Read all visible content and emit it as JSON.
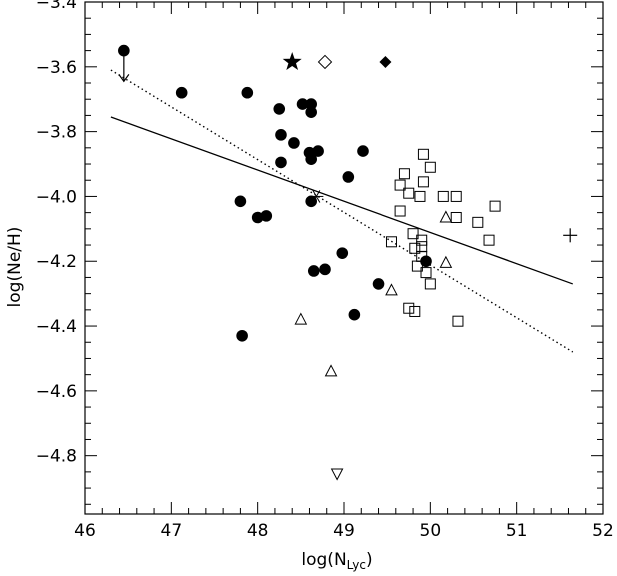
{
  "chart_data": {
    "type": "scatter",
    "title": "",
    "xlabel": "log(N",
    "xlabel_sub": "Lyc",
    "xlabel_end": ")",
    "ylabel": "log(Ne/H)",
    "xlim": [
      46,
      52
    ],
    "ylim": [
      -4.98,
      -3.4
    ],
    "x_ticks": [
      46,
      47,
      48,
      49,
      50,
      51,
      52
    ],
    "x_tick_labels": [
      "46",
      "47",
      "48",
      "49",
      "50",
      "51",
      "52"
    ],
    "y_ticks": [
      -3.4,
      -3.6,
      -3.8,
      -4.0,
      -4.2,
      -4.4,
      -4.6,
      -4.8
    ],
    "y_tick_labels": [
      "−3.4",
      "−3.6",
      "−3.8",
      "−4.0",
      "−4.2",
      "−4.4",
      "−4.6",
      "−4.8"
    ],
    "grid": false,
    "legend": "none",
    "series": [
      {
        "marker": "filled-circle",
        "points": [
          [
            46.45,
            -3.55
          ],
          [
            47.12,
            -3.68
          ],
          [
            47.88,
            -3.68
          ],
          [
            48.25,
            -3.73
          ],
          [
            48.52,
            -3.715
          ],
          [
            48.62,
            -3.715
          ],
          [
            48.62,
            -3.74
          ],
          [
            48.27,
            -3.81
          ],
          [
            48.42,
            -3.835
          ],
          [
            48.27,
            -3.895
          ],
          [
            48.6,
            -3.865
          ],
          [
            48.62,
            -3.885
          ],
          [
            48.7,
            -3.86
          ],
          [
            49.22,
            -3.86
          ],
          [
            49.05,
            -3.94
          ],
          [
            47.8,
            -4.015
          ],
          [
            48.0,
            -4.065
          ],
          [
            48.1,
            -4.06
          ],
          [
            48.62,
            -4.015
          ],
          [
            48.98,
            -4.175
          ],
          [
            48.65,
            -4.23
          ],
          [
            48.78,
            -4.225
          ],
          [
            49.95,
            -4.2
          ],
          [
            49.4,
            -4.27
          ],
          [
            49.12,
            -4.365
          ],
          [
            47.82,
            -4.43
          ]
        ]
      },
      {
        "marker": "open-square",
        "points": [
          [
            49.92,
            -3.87
          ],
          [
            49.92,
            -3.955
          ],
          [
            50.0,
            -3.91
          ],
          [
            49.7,
            -3.93
          ],
          [
            49.65,
            -3.965
          ],
          [
            49.75,
            -3.99
          ],
          [
            49.88,
            -4.0
          ],
          [
            50.15,
            -4.0
          ],
          [
            50.3,
            -4.0
          ],
          [
            50.75,
            -4.03
          ],
          [
            49.65,
            -4.045
          ],
          [
            50.3,
            -4.065
          ],
          [
            50.55,
            -4.08
          ],
          [
            49.8,
            -4.115
          ],
          [
            49.9,
            -4.135
          ],
          [
            50.68,
            -4.135
          ],
          [
            49.55,
            -4.14
          ],
          [
            49.82,
            -4.16
          ],
          [
            49.9,
            -4.155
          ],
          [
            49.9,
            -4.185
          ],
          [
            49.85,
            -4.215
          ],
          [
            49.95,
            -4.235
          ],
          [
            50.0,
            -4.27
          ],
          [
            49.75,
            -4.345
          ],
          [
            49.82,
            -4.355
          ],
          [
            50.32,
            -4.385
          ]
        ]
      },
      {
        "marker": "open-triangle-up",
        "points": [
          [
            50.18,
            -4.065
          ],
          [
            50.18,
            -4.205
          ],
          [
            49.55,
            -4.29
          ],
          [
            48.5,
            -4.38
          ],
          [
            48.85,
            -4.54
          ]
        ]
      },
      {
        "marker": "open-triangle-down",
        "points": [
          [
            48.92,
            -4.855
          ]
        ]
      },
      {
        "marker": "filled-star",
        "points": [
          [
            48.4,
            -3.585
          ]
        ]
      },
      {
        "marker": "open-diamond",
        "points": [
          [
            48.78,
            -3.585
          ]
        ]
      },
      {
        "marker": "filled-diamond",
        "points": [
          [
            49.48,
            -3.585
          ]
        ]
      },
      {
        "marker": "plus",
        "points": [
          [
            51.62,
            -4.12
          ]
        ]
      },
      {
        "marker": "asterisk",
        "points": [
          [
            48.68,
            -4.0
          ]
        ]
      }
    ],
    "upper_limit_arrow": {
      "x": 46.45,
      "y_from": -3.56,
      "y_to": -3.645
    },
    "fit_lines": [
      {
        "style": "solid",
        "x": [
          46.3,
          51.65
        ],
        "y": [
          -3.755,
          -4.27
        ]
      },
      {
        "style": "dotted",
        "x": [
          46.3,
          51.65
        ],
        "y": [
          -3.61,
          -4.48
        ]
      }
    ]
  }
}
